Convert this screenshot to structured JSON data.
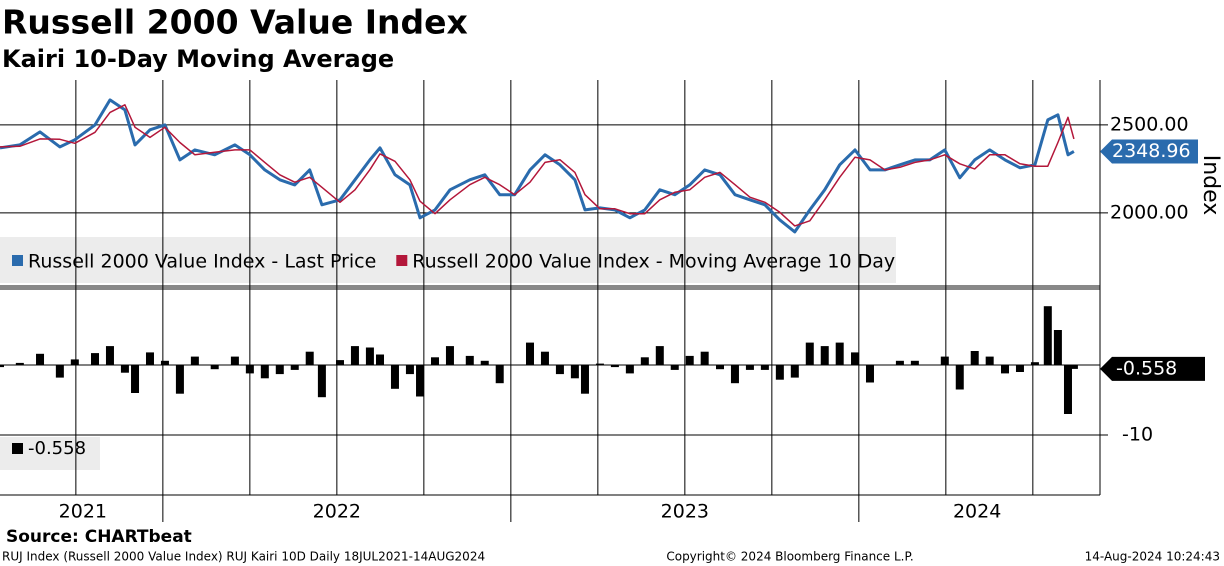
{
  "title": "Russell 2000 Value Index",
  "subtitle": "Kairi 10-Day Moving Average",
  "source": "Source: CHARTbeat",
  "footer": {
    "left": "RUJ Index (Russell 2000 Value Index) RUJ Kairi 10D  Daily 18JUL2021-14AUG2024",
    "center": "Copyright© 2024 Bloomberg Finance L.P.",
    "right": "14-Aug-2024 10:24:43"
  },
  "chart_data": [
    {
      "type": "line",
      "ylabel": "Index",
      "x": [
        2021.532,
        2021.589,
        2021.647,
        2021.704,
        2021.747,
        2021.805,
        2021.848,
        2021.891,
        2021.92,
        2021.963,
        2022.006,
        2022.049,
        2022.092,
        2022.149,
        2022.207,
        2022.25,
        2022.293,
        2022.336,
        2022.379,
        2022.422,
        2022.457,
        2022.509,
        2022.552,
        2022.595,
        2022.624,
        2022.667,
        2022.71,
        2022.739,
        2022.782,
        2022.825,
        2022.882,
        2022.925,
        2022.968,
        2023.011,
        2023.055,
        2023.098,
        2023.141,
        2023.184,
        2023.213,
        2023.256,
        2023.299,
        2023.342,
        2023.385,
        2023.428,
        2023.471,
        2023.514,
        2023.557,
        2023.601,
        2023.644,
        2023.687,
        2023.73,
        2023.773,
        2023.816,
        2023.859,
        2023.902,
        2023.945,
        2023.989,
        2024.032,
        2024.075,
        2024.118,
        2024.161,
        2024.204,
        2024.247,
        2024.29,
        2024.333,
        2024.376,
        2024.42,
        2024.463,
        2024.506,
        2024.543,
        2024.572,
        2024.601,
        2024.618
      ],
      "series": [
        {
          "name": "Russell 2000 Value Index - Last Price",
          "color": "#2a6bad",
          "values": [
            2369,
            2386,
            2460,
            2375,
            2415,
            2500,
            2642,
            2585,
            2386,
            2472,
            2500,
            2301,
            2358,
            2330,
            2386,
            2330,
            2244,
            2188,
            2159,
            2244,
            2046,
            2074,
            2188,
            2301,
            2369,
            2216,
            2159,
            1972,
            2017,
            2131,
            2188,
            2216,
            2103,
            2103,
            2244,
            2330,
            2273,
            2188,
            2017,
            2028,
            2017,
            1972,
            2017,
            2131,
            2103,
            2159,
            2244,
            2216,
            2103,
            2074,
            2046,
            1960,
            1892,
            2017,
            2131,
            2273,
            2358,
            2244,
            2244,
            2273,
            2301,
            2301,
            2358,
            2199,
            2301,
            2358,
            2301,
            2256,
            2273,
            2528,
            2557,
            2330,
            2348.96
          ]
        },
        {
          "name": "Russell 2000 Value Index - Moving Average 10 Day",
          "color": "#b3173a",
          "values": [
            2375,
            2378,
            2420,
            2418,
            2395,
            2458,
            2571,
            2614,
            2486,
            2429,
            2486,
            2400,
            2330,
            2344,
            2358,
            2358,
            2287,
            2216,
            2174,
            2202,
            2145,
            2060,
            2131,
            2245,
            2335,
            2293,
            2188,
            2066,
            1995,
            2074,
            2160,
            2202,
            2160,
            2103,
            2174,
            2287,
            2302,
            2230,
            2103,
            2023,
            2023,
            1995,
            1995,
            2074,
            2117,
            2131,
            2202,
            2230,
            2160,
            2089,
            2060,
            2003,
            1926,
            1955,
            2074,
            2202,
            2316,
            2301,
            2244,
            2259,
            2287,
            2301,
            2330,
            2279,
            2250,
            2330,
            2330,
            2279,
            2265,
            2265,
            2400,
            2543,
            2420
          ]
        }
      ],
      "last_value": 2348.96,
      "xlim": [
        2021.532,
        2024.693
      ],
      "xgrid": [
        2021.75,
        2022.0,
        2022.25,
        2022.5,
        2022.75,
        2023.0,
        2023.25,
        2023.5,
        2023.75,
        2024.0,
        2024.25,
        2024.5
      ],
      "ylim": [
        1590,
        2755
      ],
      "yticks": [
        {
          "value": 2500,
          "label": "2500.00"
        },
        {
          "value": 2000,
          "label": "2000.00"
        }
      ],
      "grid": true
    },
    {
      "type": "bar",
      "color": "#000000",
      "x": [
        2021.532,
        2021.589,
        2021.647,
        2021.704,
        2021.747,
        2021.805,
        2021.848,
        2021.891,
        2021.92,
        2021.963,
        2022.006,
        2022.049,
        2022.092,
        2022.149,
        2022.207,
        2022.25,
        2022.293,
        2022.336,
        2022.379,
        2022.422,
        2022.457,
        2022.509,
        2022.552,
        2022.595,
        2022.624,
        2022.667,
        2022.71,
        2022.739,
        2022.782,
        2022.825,
        2022.882,
        2022.925,
        2022.968,
        2023.011,
        2023.055,
        2023.098,
        2023.141,
        2023.184,
        2023.213,
        2023.256,
        2023.299,
        2023.342,
        2023.385,
        2023.428,
        2023.471,
        2023.514,
        2023.557,
        2023.601,
        2023.644,
        2023.687,
        2023.73,
        2023.773,
        2023.816,
        2023.859,
        2023.902,
        2023.945,
        2023.989,
        2024.032,
        2024.075,
        2024.118,
        2024.161,
        2024.204,
        2024.247,
        2024.29,
        2024.333,
        2024.376,
        2024.42,
        2024.463,
        2024.506,
        2024.543,
        2024.572,
        2024.601,
        2024.618
      ],
      "values": [
        -0.3,
        0.3,
        1.6,
        -1.8,
        0.8,
        1.7,
        2.7,
        -1.1,
        -4.0,
        1.8,
        0.6,
        -4.1,
        1.2,
        -0.6,
        1.2,
        -1.2,
        -1.9,
        -1.3,
        -0.7,
        1.9,
        -4.6,
        0.7,
        2.7,
        2.5,
        1.5,
        -3.4,
        -1.3,
        -4.5,
        1.1,
        2.7,
        1.3,
        0.6,
        -2.6,
        0,
        3.2,
        1.9,
        -1.3,
        -1.9,
        -4.1,
        0.2,
        -0.3,
        -1.2,
        1.1,
        2.7,
        -0.7,
        1.3,
        1.9,
        -0.6,
        -2.6,
        -0.7,
        -0.7,
        -2.1,
        -1.8,
        3.2,
        2.7,
        3.2,
        1.8,
        -2.5,
        0,
        0.6,
        0.6,
        0,
        1.2,
        -3.5,
        2.0,
        1.2,
        -1.2,
        -1.0,
        0.4,
        8.4,
        5.0,
        -7.0,
        -0.558
      ],
      "last_value": -0.558,
      "xlim": [
        2021.532,
        2024.693
      ],
      "xticks": [
        {
          "value": 2021.77,
          "label": "2021"
        },
        {
          "value": 2022.5,
          "label": "2022"
        },
        {
          "value": 2023.5,
          "label": "2023"
        },
        {
          "value": 2024.34,
          "label": "2024"
        }
      ],
      "ylim": [
        -15,
        10
      ],
      "yticks": [
        -10
      ],
      "grid": true
    }
  ]
}
